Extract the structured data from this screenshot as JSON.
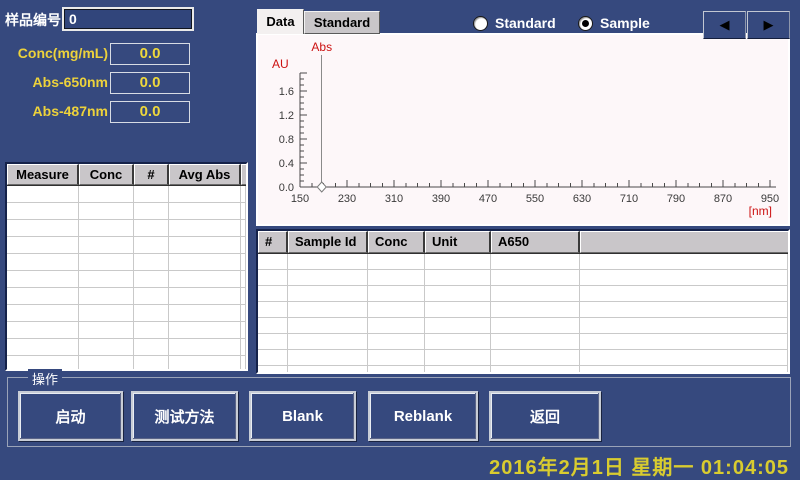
{
  "colors": {
    "background": "#36497E",
    "accent_yellow": "#EDD23B",
    "chart_background": "#FDF7F9",
    "header_gray": "#C9C6C9",
    "axis_label_red": "#CC1111"
  },
  "sample_panel": {
    "sample_no_label": "样品编号",
    "sample_no_value": "0",
    "fields": [
      {
        "label": "Conc(mg/mL)",
        "value": "0.0"
      },
      {
        "label": "Abs-650nm",
        "value": "0.0"
      },
      {
        "label": "Abs-487nm",
        "value": "0.0"
      }
    ]
  },
  "measure_table": {
    "columns": [
      "Measure",
      "Conc",
      "#",
      "Avg Abs"
    ],
    "rows": []
  },
  "view_tabs": [
    {
      "label": "Data",
      "active": true
    },
    {
      "label": "Standard",
      "active": false
    }
  ],
  "mode_radios": [
    {
      "label": "Standard",
      "selected": false
    },
    {
      "label": "Sample",
      "selected": true
    }
  ],
  "pager": {
    "prev_icon": "◀",
    "next_icon": "▶"
  },
  "chart_data": {
    "type": "line",
    "title": "Abs",
    "xlabel": "[nm]",
    "ylabel": "AU",
    "xlim": [
      150,
      950
    ],
    "ylim": [
      0.0,
      1.9
    ],
    "x_major_ticks": [
      150,
      230,
      310,
      390,
      470,
      550,
      630,
      710,
      790,
      870,
      950
    ],
    "x_minor_step": 20,
    "y_major_ticks": [
      0.0,
      0.4,
      0.8,
      1.2,
      1.6
    ],
    "y_minor_step": 0.1,
    "cursor_nm": 187,
    "series": []
  },
  "results_table": {
    "columns": [
      "#",
      "Sample Id",
      "Conc",
      "Unit",
      "A650",
      ""
    ],
    "rows": []
  },
  "actions": {
    "group_label": "操作",
    "buttons": [
      "启动",
      "测试方法",
      "Blank",
      "Reblank",
      "返回"
    ]
  },
  "status": {
    "datetime": "2016年2月1日 星期一 01:04:05"
  }
}
